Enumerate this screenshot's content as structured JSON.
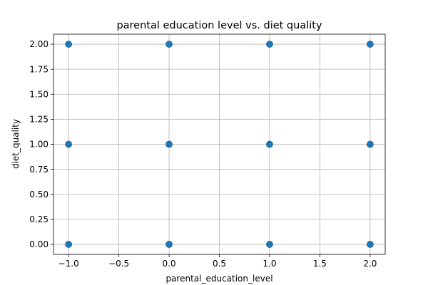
{
  "chart_data": {
    "type": "scatter",
    "title": "parental education level vs. diet quality",
    "xlabel": "parental_education_level",
    "ylabel": "diet_quality",
    "xlim": [
      -1.15,
      2.15
    ],
    "ylim": [
      -0.1,
      2.1
    ],
    "xticks": [
      -1.0,
      -0.5,
      0.0,
      0.5,
      1.0,
      1.5,
      2.0
    ],
    "xtick_labels": [
      "−1.0",
      "−0.5",
      "0.0",
      "0.5",
      "1.0",
      "1.5",
      "2.0"
    ],
    "yticks": [
      0.0,
      0.25,
      0.5,
      0.75,
      1.0,
      1.25,
      1.5,
      1.75,
      2.0
    ],
    "ytick_labels": [
      "0.00",
      "0.25",
      "0.50",
      "0.75",
      "1.00",
      "1.25",
      "1.50",
      "1.75",
      "2.00"
    ],
    "grid": true,
    "marker_color": "#1f77b4",
    "points": [
      {
        "x": -1,
        "y": 0
      },
      {
        "x": -1,
        "y": 1
      },
      {
        "x": -1,
        "y": 2
      },
      {
        "x": 0,
        "y": 0
      },
      {
        "x": 0,
        "y": 1
      },
      {
        "x": 0,
        "y": 2
      },
      {
        "x": 1,
        "y": 0
      },
      {
        "x": 1,
        "y": 1
      },
      {
        "x": 1,
        "y": 2
      },
      {
        "x": 2,
        "y": 0
      },
      {
        "x": 2,
        "y": 1
      },
      {
        "x": 2,
        "y": 2
      }
    ]
  }
}
